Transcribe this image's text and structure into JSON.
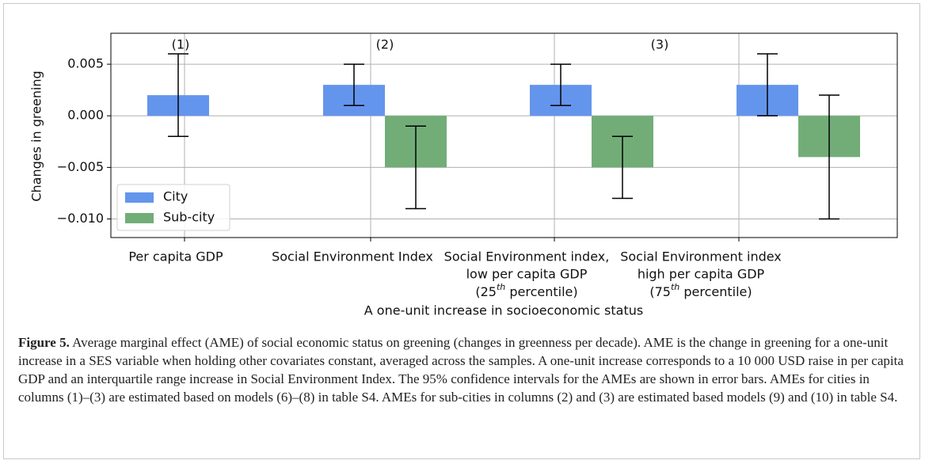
{
  "chart_data": {
    "type": "bar",
    "annotations": [
      "(1)",
      "(2)",
      "(3)"
    ],
    "ylabel": "Changes in greening",
    "xlabel": "A one-unit increase in socioeconomic status",
    "categories": [
      [
        "Per capita GDP"
      ],
      [
        "Social Environment Index"
      ],
      [
        "Social Environment index,",
        "low per capita GDP",
        "(25th percentile)"
      ],
      [
        "Social Environment index",
        "high per capita GDP",
        "(75th percentile)"
      ]
    ],
    "series": [
      {
        "name": "City",
        "color": "#6495ed",
        "values": [
          0.002,
          0.003,
          0.003,
          0.003
        ],
        "errors": [
          0.004,
          0.002,
          0.002,
          0.003
        ]
      },
      {
        "name": "Sub-city",
        "color": "#72ad78",
        "values": [
          null,
          -0.005,
          -0.005,
          -0.004
        ],
        "errors": [
          null,
          0.004,
          0.003,
          0.006
        ]
      }
    ],
    "ylim": [
      -0.0118,
      0.008
    ],
    "yticks": [
      {
        "value": 0.005,
        "label": "0.005"
      },
      {
        "value": 0,
        "label": "0.000"
      },
      {
        "value": -0.005,
        "label": "−0.005"
      },
      {
        "value": -0.01,
        "label": "−0.010"
      }
    ],
    "grid": true,
    "legend": "lower left"
  },
  "caption": {
    "label": "Figure 5.",
    "text": " Average marginal effect (AME) of social economic status on greening (changes in greenness per decade). AME is the change in greening for a one-unit increase in a SES variable when holding other covariates constant, averaged across the samples. A one-unit increase corresponds to a 10 000 USD raise in per capita GDP and an interquartile range increase in Social Environment Index. The 95% confidence intervals for the AMEs are shown in error bars. AMEs for cities in columns (1)–(3) are estimated based on models (6)–(8) in table S4. AMEs for sub-cities in columns (2) and (3) are estimated based models (9) and (10) in table S4."
  }
}
